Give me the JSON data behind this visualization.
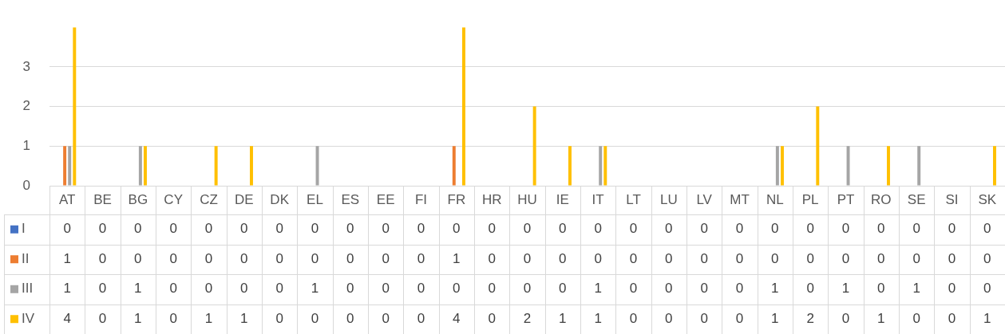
{
  "chart_data": {
    "type": "bar",
    "categories": [
      "AT",
      "BE",
      "BG",
      "CY",
      "CZ",
      "DE",
      "DK",
      "EL",
      "ES",
      "EE",
      "FI",
      "FR",
      "HR",
      "HU",
      "IE",
      "IT",
      "LT",
      "LU",
      "LV",
      "MT",
      "NL",
      "PL",
      "PT",
      "RO",
      "SE",
      "SI",
      "SK"
    ],
    "series": [
      {
        "name": "I",
        "color": "#4472c4",
        "values": [
          0,
          0,
          0,
          0,
          0,
          0,
          0,
          0,
          0,
          0,
          0,
          0,
          0,
          0,
          0,
          0,
          0,
          0,
          0,
          0,
          0,
          0,
          0,
          0,
          0,
          0,
          0
        ]
      },
      {
        "name": "II",
        "color": "#ed7d31",
        "values": [
          1,
          0,
          0,
          0,
          0,
          0,
          0,
          0,
          0,
          0,
          0,
          1,
          0,
          0,
          0,
          0,
          0,
          0,
          0,
          0,
          0,
          0,
          0,
          0,
          0,
          0,
          0
        ]
      },
      {
        "name": "III",
        "color": "#a5a5a5",
        "values": [
          1,
          0,
          1,
          0,
          0,
          0,
          0,
          1,
          0,
          0,
          0,
          0,
          0,
          0,
          0,
          1,
          0,
          0,
          0,
          0,
          1,
          0,
          1,
          0,
          1,
          0,
          0
        ]
      },
      {
        "name": "IV",
        "color": "#ffc000",
        "values": [
          4,
          0,
          1,
          0,
          1,
          1,
          0,
          0,
          0,
          0,
          0,
          4,
          0,
          2,
          1,
          1,
          0,
          0,
          0,
          0,
          1,
          2,
          0,
          1,
          0,
          0,
          1
        ]
      }
    ],
    "ylim": [
      0,
      4
    ],
    "yticks": [
      0,
      1,
      2,
      3
    ],
    "grid": "y",
    "legend": "bottom",
    "data_labels": true
  }
}
